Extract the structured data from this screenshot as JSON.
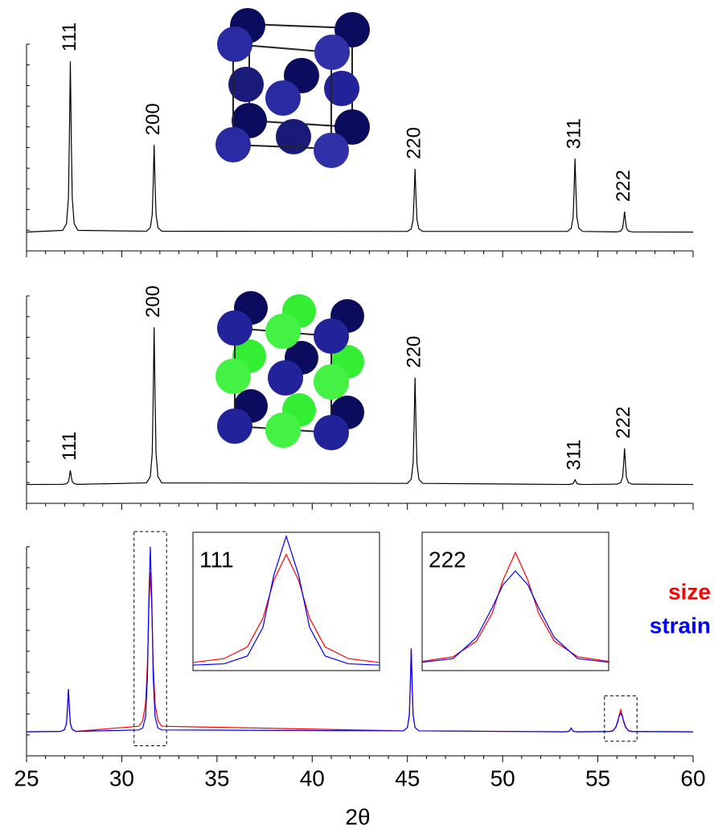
{
  "chart_data": [
    {
      "type": "line",
      "color": "#000000",
      "x": [
        25,
        26.9,
        27.1,
        27.2,
        27.25,
        27.3,
        27.35,
        27.4,
        27.5,
        27.7,
        31.3,
        31.5,
        31.6,
        31.65,
        31.7,
        31.75,
        31.8,
        31.9,
        32.1,
        45.0,
        45.2,
        45.3,
        45.35,
        45.4,
        45.45,
        45.5,
        45.6,
        45.8,
        53.4,
        53.6,
        53.7,
        53.75,
        53.8,
        53.85,
        53.9,
        54.0,
        54.2,
        56.0,
        56.2,
        56.3,
        56.35,
        56.4,
        56.45,
        56.5,
        56.6,
        56.8,
        60
      ],
      "values": [
        0,
        1,
        5,
        20,
        55,
        100,
        55,
        20,
        5,
        1,
        0.5,
        2.6,
        10.2,
        28,
        51,
        28,
        10.2,
        2.6,
        0.5,
        0.4,
        1.9,
        7.4,
        20.4,
        37,
        20.4,
        7.4,
        1.9,
        0.4,
        0.4,
        2.2,
        8.6,
        23.7,
        43,
        23.7,
        8.6,
        2.2,
        0.4,
        0.1,
        0.6,
        2.4,
        6.6,
        12,
        6.6,
        2.4,
        0.6,
        0.1,
        0
      ],
      "annotations": [
        {
          "text": "111",
          "x": 27.3,
          "y": 100
        },
        {
          "text": "200",
          "x": 31.7,
          "y": 51
        },
        {
          "text": "220",
          "x": 45.4,
          "y": 37
        },
        {
          "text": "311",
          "x": 53.8,
          "y": 43
        },
        {
          "text": "222",
          "x": 56.4,
          "y": 12
        }
      ],
      "xlim": [
        25,
        60
      ],
      "ylim": [
        -11,
        110
      ],
      "xticks": [
        25,
        30,
        35,
        40,
        45,
        50,
        55,
        60
      ]
    },
    {
      "type": "line",
      "color": "#000000",
      "x": [
        25,
        26.9,
        27.1,
        27.2,
        27.25,
        27.3,
        27.35,
        27.4,
        27.5,
        27.7,
        31.3,
        31.5,
        31.6,
        31.65,
        31.7,
        31.75,
        31.8,
        31.9,
        32.1,
        45.0,
        45.2,
        45.3,
        45.35,
        45.4,
        45.45,
        45.5,
        45.6,
        45.8,
        53.4,
        53.6,
        53.7,
        53.75,
        53.8,
        53.85,
        53.9,
        54.0,
        54.2,
        56.0,
        56.2,
        56.3,
        56.35,
        56.4,
        56.45,
        56.5,
        56.6,
        56.8,
        60
      ],
      "values": [
        0,
        0.1,
        0.5,
        1.8,
        5,
        9,
        5,
        1.8,
        0.5,
        0.1,
        1,
        5,
        20,
        55,
        100,
        55,
        20,
        5,
        1,
        0.7,
        3.4,
        13.6,
        37.4,
        68,
        37.4,
        13.6,
        3.4,
        0.7,
        0,
        0.2,
        0.6,
        1.7,
        3,
        1.7,
        0.6,
        0.2,
        0,
        0.2,
        1.2,
        4.6,
        12.7,
        23,
        12.7,
        4.6,
        1.2,
        0.2,
        0
      ],
      "annotations": [
        {
          "text": "111",
          "x": 27.3,
          "y": 9
        },
        {
          "text": "200",
          "x": 31.7,
          "y": 100
        },
        {
          "text": "220",
          "x": 45.4,
          "y": 68
        },
        {
          "text": "311",
          "x": 53.8,
          "y": 3
        },
        {
          "text": "222",
          "x": 56.4,
          "y": 23
        }
      ],
      "xlim": [
        25,
        60
      ],
      "ylim": [
        -12,
        120
      ],
      "xticks": [
        25,
        30,
        35,
        40,
        45,
        50,
        55,
        60
      ]
    },
    {
      "type": "line",
      "x_label": "2θ",
      "x": [
        25,
        26.8,
        27.0,
        27.1,
        27.15,
        27.2,
        27.25,
        27.3,
        27.4,
        27.6,
        30.9,
        31.1,
        31.25,
        31.35,
        31.42,
        31.5,
        31.58,
        31.65,
        31.75,
        31.9,
        32.1,
        44.8,
        45.0,
        45.1,
        45.15,
        45.2,
        45.25,
        45.3,
        45.4,
        45.6,
        53.2,
        53.4,
        53.5,
        53.55,
        53.6,
        53.65,
        53.7,
        53.8,
        54.0,
        55.6,
        55.8,
        55.95,
        56.05,
        56.12,
        56.2,
        56.28,
        56.35,
        56.45,
        56.6,
        56.8,
        60
      ],
      "series": [
        {
          "name": "size",
          "color": "#ff0000",
          "values": [
            0,
            0.2,
            1.2,
            4.6,
            12.7,
            23,
            12.7,
            4.6,
            1.2,
            0.2,
            3,
            6,
            15,
            37,
            66,
            86,
            66,
            37,
            15,
            6,
            3,
            0.5,
            2.3,
            9,
            24.8,
            45,
            24.8,
            9,
            2.3,
            0.5,
            0,
            0.1,
            0.4,
            1.1,
            2,
            1.1,
            0.4,
            0.1,
            0,
            0.2,
            0.7,
            2.4,
            5.4,
            9,
            12,
            9,
            5.4,
            2.4,
            0.7,
            0.2,
            0
          ]
        },
        {
          "name": "strain",
          "color": "#0000ff",
          "values": [
            0,
            0.2,
            1.2,
            4.6,
            12.7,
            23,
            12.7,
            4.6,
            1.2,
            0.2,
            1,
            2,
            8,
            30,
            70,
            100,
            70,
            30,
            8,
            2,
            1,
            0.5,
            2.3,
            9,
            24.8,
            45,
            24.8,
            9,
            2.3,
            0.5,
            0,
            0.1,
            0.4,
            1.1,
            2,
            1.1,
            0.4,
            0.1,
            0,
            0.1,
            0.5,
            2.8,
            6,
            8.5,
            10,
            8.5,
            6,
            2.8,
            0.5,
            0.1,
            0
          ]
        }
      ],
      "insets": [
        {
          "label": "111",
          "xlim": [
            30.9,
            32.1
          ],
          "ylim": [
            -3.2,
            103
          ]
        },
        {
          "label": "222",
          "xlim": [
            55.6,
            56.8
          ],
          "ylim": [
            -0.8,
            14.2
          ]
        }
      ],
      "xlim": [
        25,
        60
      ],
      "ylim": [
        -13,
        100
      ],
      "xticks": [
        25,
        30,
        35,
        40,
        45,
        50,
        55,
        60
      ]
    }
  ]
}
